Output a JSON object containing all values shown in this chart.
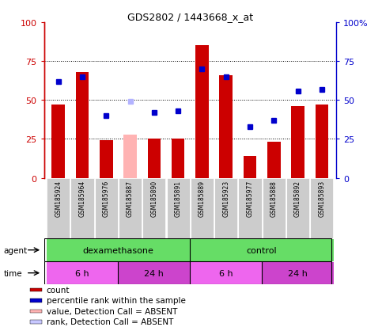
{
  "title": "GDS2802 / 1443668_x_at",
  "samples": [
    "GSM185924",
    "GSM185964",
    "GSM185976",
    "GSM185887",
    "GSM185890",
    "GSM185891",
    "GSM185889",
    "GSM185923",
    "GSM185977",
    "GSM185888",
    "GSM185892",
    "GSM185893"
  ],
  "bar_values": [
    47,
    68,
    24,
    28,
    25,
    25,
    85,
    66,
    14,
    23,
    46,
    47
  ],
  "bar_colors": [
    "#cc0000",
    "#cc0000",
    "#cc0000",
    "#ffb3b3",
    "#cc0000",
    "#cc0000",
    "#cc0000",
    "#cc0000",
    "#cc0000",
    "#cc0000",
    "#cc0000",
    "#cc0000"
  ],
  "rank_values": [
    62,
    65,
    40,
    49,
    42,
    43,
    70,
    65,
    33,
    37,
    56,
    57
  ],
  "rank_colors": [
    "#0000cc",
    "#0000cc",
    "#0000cc",
    "#b3b3ff",
    "#0000cc",
    "#0000cc",
    "#0000cc",
    "#0000cc",
    "#0000cc",
    "#0000cc",
    "#0000cc",
    "#0000cc"
  ],
  "ylim": [
    0,
    100
  ],
  "yticks": [
    0,
    25,
    50,
    75,
    100
  ],
  "agent_groups": [
    {
      "label": "dexamethasone",
      "start": 0,
      "end": 6,
      "color": "#66dd66"
    },
    {
      "label": "control",
      "start": 6,
      "end": 12,
      "color": "#66dd66"
    }
  ],
  "time_groups": [
    {
      "label": "6 h",
      "start": 0,
      "end": 3,
      "color": "#ee66ee"
    },
    {
      "label": "24 h",
      "start": 3,
      "end": 6,
      "color": "#cc44cc"
    },
    {
      "label": "6 h",
      "start": 6,
      "end": 9,
      "color": "#ee66ee"
    },
    {
      "label": "24 h",
      "start": 9,
      "end": 12,
      "color": "#cc44cc"
    }
  ],
  "legend_items": [
    {
      "label": "count",
      "color": "#cc0000"
    },
    {
      "label": "percentile rank within the sample",
      "color": "#0000cc"
    },
    {
      "label": "value, Detection Call = ABSENT",
      "color": "#ffb3b3"
    },
    {
      "label": "rank, Detection Call = ABSENT",
      "color": "#c8c8ff"
    }
  ],
  "left_axis_color": "#cc0000",
  "right_axis_color": "#0000cc",
  "sample_bg_color": "#cccccc",
  "bg_color": "#ffffff"
}
